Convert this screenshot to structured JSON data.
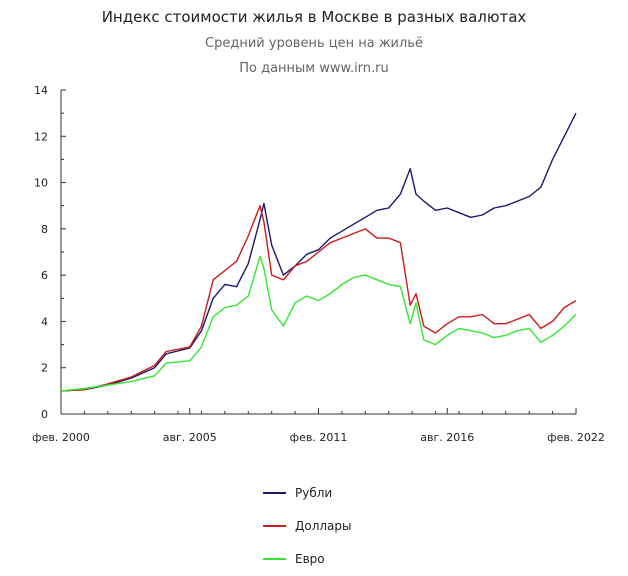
{
  "title": "Индекс стоимости жилья в Москве в разных валютах",
  "subtitle": "Средний уровень цен на жильё",
  "source": "По данным www.irn.ru",
  "chart_data": {
    "type": "line",
    "ylim": [
      0,
      14
    ],
    "yticks": [
      "0",
      "2",
      "4",
      "6",
      "8",
      "10",
      "12",
      "14"
    ],
    "xlim": [
      "2000-02",
      "2022-02"
    ],
    "xticks": [
      {
        "date": "2000-02",
        "label": "фев. 2000"
      },
      {
        "date": "2005-08",
        "label": "авг. 2005"
      },
      {
        "date": "2011-02",
        "label": "фев. 2011"
      },
      {
        "date": "2016-08",
        "label": "авг. 2016"
      },
      {
        "date": "2022-02",
        "label": "фев. 2022"
      }
    ],
    "legend_position": "bottom-center",
    "series": [
      {
        "name": "Рубли",
        "color": "#1a1a6e",
        "points": [
          [
            "2000-02",
            1.0
          ],
          [
            "2001-02",
            1.05
          ],
          [
            "2002-02",
            1.25
          ],
          [
            "2003-02",
            1.55
          ],
          [
            "2004-02",
            2.0
          ],
          [
            "2004-08",
            2.6
          ],
          [
            "2005-08",
            2.85
          ],
          [
            "2006-02",
            3.6
          ],
          [
            "2006-08",
            5.0
          ],
          [
            "2007-02",
            5.6
          ],
          [
            "2007-08",
            5.5
          ],
          [
            "2008-02",
            6.5
          ],
          [
            "2008-08",
            8.4
          ],
          [
            "2008-10",
            9.1
          ],
          [
            "2009-02",
            7.3
          ],
          [
            "2009-08",
            6.0
          ],
          [
            "2010-02",
            6.4
          ],
          [
            "2010-08",
            6.9
          ],
          [
            "2011-02",
            7.1
          ],
          [
            "2011-08",
            7.6
          ],
          [
            "2012-02",
            7.9
          ],
          [
            "2012-08",
            8.2
          ],
          [
            "2013-02",
            8.5
          ],
          [
            "2013-08",
            8.8
          ],
          [
            "2014-02",
            8.9
          ],
          [
            "2014-08",
            9.5
          ],
          [
            "2015-01",
            10.6
          ],
          [
            "2015-04",
            9.5
          ],
          [
            "2015-08",
            9.2
          ],
          [
            "2016-02",
            8.8
          ],
          [
            "2016-08",
            8.9
          ],
          [
            "2017-02",
            8.7
          ],
          [
            "2017-08",
            8.5
          ],
          [
            "2018-02",
            8.6
          ],
          [
            "2018-08",
            8.9
          ],
          [
            "2019-02",
            9.0
          ],
          [
            "2019-08",
            9.2
          ],
          [
            "2020-02",
            9.4
          ],
          [
            "2020-08",
            9.8
          ],
          [
            "2021-02",
            11.0
          ],
          [
            "2021-08",
            12.0
          ],
          [
            "2022-02",
            13.0
          ]
        ]
      },
      {
        "name": "Доллары",
        "color": "#cc1a1a",
        "points": [
          [
            "2000-02",
            1.0
          ],
          [
            "2001-02",
            1.05
          ],
          [
            "2002-02",
            1.3
          ],
          [
            "2003-02",
            1.6
          ],
          [
            "2004-02",
            2.1
          ],
          [
            "2004-08",
            2.7
          ],
          [
            "2005-08",
            2.9
          ],
          [
            "2006-02",
            3.8
          ],
          [
            "2006-08",
            5.8
          ],
          [
            "2007-02",
            6.2
          ],
          [
            "2007-08",
            6.6
          ],
          [
            "2008-02",
            7.7
          ],
          [
            "2008-08",
            9.0
          ],
          [
            "2008-10",
            8.3
          ],
          [
            "2009-02",
            6.0
          ],
          [
            "2009-08",
            5.8
          ],
          [
            "2010-02",
            6.4
          ],
          [
            "2010-08",
            6.6
          ],
          [
            "2011-02",
            7.0
          ],
          [
            "2011-08",
            7.4
          ],
          [
            "2012-02",
            7.6
          ],
          [
            "2012-08",
            7.8
          ],
          [
            "2013-02",
            8.0
          ],
          [
            "2013-08",
            7.6
          ],
          [
            "2014-02",
            7.6
          ],
          [
            "2014-08",
            7.4
          ],
          [
            "2015-01",
            4.7
          ],
          [
            "2015-04",
            5.2
          ],
          [
            "2015-08",
            3.8
          ],
          [
            "2016-02",
            3.5
          ],
          [
            "2016-08",
            3.9
          ],
          [
            "2017-02",
            4.2
          ],
          [
            "2017-08",
            4.2
          ],
          [
            "2018-02",
            4.3
          ],
          [
            "2018-08",
            3.9
          ],
          [
            "2019-02",
            3.9
          ],
          [
            "2019-08",
            4.1
          ],
          [
            "2020-02",
            4.3
          ],
          [
            "2020-08",
            3.7
          ],
          [
            "2021-02",
            4.0
          ],
          [
            "2021-08",
            4.6
          ],
          [
            "2022-02",
            4.9
          ]
        ]
      },
      {
        "name": "Евро",
        "color": "#33e633",
        "points": [
          [
            "2000-02",
            1.0
          ],
          [
            "2001-02",
            1.1
          ],
          [
            "2002-02",
            1.25
          ],
          [
            "2003-02",
            1.4
          ],
          [
            "2004-02",
            1.65
          ],
          [
            "2004-08",
            2.2
          ],
          [
            "2005-08",
            2.3
          ],
          [
            "2006-02",
            2.9
          ],
          [
            "2006-08",
            4.2
          ],
          [
            "2007-02",
            4.6
          ],
          [
            "2007-08",
            4.7
          ],
          [
            "2008-02",
            5.1
          ],
          [
            "2008-08",
            6.8
          ],
          [
            "2008-10",
            6.3
          ],
          [
            "2009-02",
            4.5
          ],
          [
            "2009-08",
            3.8
          ],
          [
            "2010-02",
            4.8
          ],
          [
            "2010-08",
            5.1
          ],
          [
            "2011-02",
            4.9
          ],
          [
            "2011-08",
            5.2
          ],
          [
            "2012-02",
            5.6
          ],
          [
            "2012-08",
            5.9
          ],
          [
            "2013-02",
            6.0
          ],
          [
            "2013-08",
            5.8
          ],
          [
            "2014-02",
            5.6
          ],
          [
            "2014-08",
            5.5
          ],
          [
            "2015-01",
            3.9
          ],
          [
            "2015-04",
            4.8
          ],
          [
            "2015-08",
            3.2
          ],
          [
            "2016-02",
            3.0
          ],
          [
            "2016-08",
            3.4
          ],
          [
            "2017-02",
            3.7
          ],
          [
            "2017-08",
            3.6
          ],
          [
            "2018-02",
            3.5
          ],
          [
            "2018-08",
            3.3
          ],
          [
            "2019-02",
            3.4
          ],
          [
            "2019-08",
            3.6
          ],
          [
            "2020-02",
            3.7
          ],
          [
            "2020-08",
            3.1
          ],
          [
            "2021-02",
            3.4
          ],
          [
            "2021-08",
            3.8
          ],
          [
            "2022-02",
            4.3
          ]
        ]
      }
    ]
  }
}
